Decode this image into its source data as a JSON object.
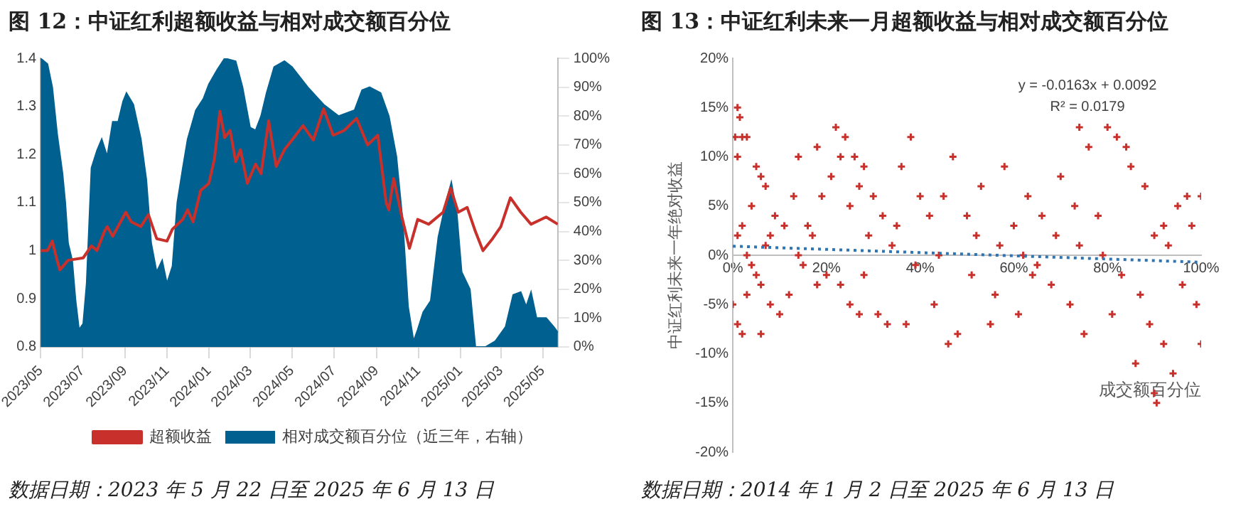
{
  "chart_data": [
    {
      "type": "line",
      "title": "图 12：中证红利超额收益与相对成交额百分位",
      "annotations": [
        "数据日期：2023 年 5 月 22 日至 2025 年 6 月 13 日"
      ],
      "legend": "bottom",
      "grid": false,
      "xlim": [
        "2023-05-22",
        "2025-06-13"
      ],
      "xticks": [
        {
          "value": "2023-05-22",
          "label": "2023/05"
        },
        {
          "value": "2023-07-22",
          "label": "2023/07"
        },
        {
          "value": "2023-09-22",
          "label": "2023/09"
        },
        {
          "value": "2023-11-22",
          "label": "2023/11"
        },
        {
          "value": "2024-01-22",
          "label": "2024/01"
        },
        {
          "value": "2024-03-22",
          "label": "2024/03"
        },
        {
          "value": "2024-05-22",
          "label": "2024/05"
        },
        {
          "value": "2024-07-22",
          "label": "2024/07"
        },
        {
          "value": "2024-09-22",
          "label": "2024/09"
        },
        {
          "value": "2024-11-22",
          "label": "2024/11"
        },
        {
          "value": "2025-01-22",
          "label": "2025/01"
        },
        {
          "value": "2025-03-22",
          "label": "2025/03"
        },
        {
          "value": "2025-05-22",
          "label": "2025/05"
        }
      ],
      "ylim": [
        0.8,
        1.4
      ],
      "yticks": [
        0.8,
        0.9,
        1,
        1.1,
        1.2,
        1.3,
        1.4
      ],
      "y2lim": [
        0,
        100
      ],
      "y2ticks": [
        {
          "value": 0,
          "label": "0%"
        },
        {
          "value": 10,
          "label": "10%"
        },
        {
          "value": 20,
          "label": "20%"
        },
        {
          "value": 30,
          "label": "30%"
        },
        {
          "value": 40,
          "label": "40%"
        },
        {
          "value": 50,
          "label": "50%"
        },
        {
          "value": 60,
          "label": "60%"
        },
        {
          "value": 70,
          "label": "70%"
        },
        {
          "value": 80,
          "label": "80%"
        },
        {
          "value": 90,
          "label": "90%"
        },
        {
          "value": 100,
          "label": "100%"
        }
      ],
      "series": [
        {
          "name": "相对成交额百分位（近三年，右轴）",
          "type": "area",
          "axis": "y2",
          "color": "#00608f",
          "x": [
            "2023-05-22",
            "2023-06-01",
            "2023-06-08",
            "2023-06-15",
            "2023-06-23",
            "2023-06-27",
            "2023-07-01",
            "2023-07-07",
            "2023-07-12",
            "2023-07-17",
            "2023-07-23",
            "2023-07-28",
            "2023-08-04",
            "2023-08-12",
            "2023-08-19",
            "2023-08-27",
            "2023-09-04",
            "2023-09-12",
            "2023-09-19",
            "2023-09-24",
            "2023-10-04",
            "2023-10-15",
            "2023-10-23",
            "2023-10-30",
            "2023-11-07",
            "2023-11-15",
            "2023-11-22",
            "2023-11-30",
            "2023-12-07",
            "2023-12-15",
            "2023-12-22",
            "2024-01-03",
            "2024-01-14",
            "2024-01-22",
            "2024-02-03",
            "2024-02-14",
            "2024-03-01",
            "2024-03-11",
            "2024-03-22",
            "2024-03-30",
            "2024-04-07",
            "2024-04-15",
            "2024-04-26",
            "2024-05-11",
            "2024-05-22",
            "2024-06-14",
            "2024-07-07",
            "2024-07-29",
            "2024-08-21",
            "2024-09-01",
            "2024-09-12",
            "2024-09-28",
            "2024-10-10",
            "2024-10-21",
            "2024-10-30",
            "2024-11-07",
            "2024-11-15",
            "2024-11-21",
            "2024-11-29",
            "2024-12-10",
            "2024-12-21",
            "2025-01-01",
            "2025-01-09",
            "2025-01-17",
            "2025-01-24",
            "2025-02-05",
            "2025-02-13",
            "2025-02-28",
            "2025-03-14",
            "2025-03-29",
            "2025-04-09",
            "2025-04-20",
            "2025-04-28",
            "2025-05-05",
            "2025-05-13",
            "2025-05-27",
            "2025-06-07",
            "2025-06-13"
          ],
          "values": [
            100,
            98,
            90,
            74,
            60,
            50,
            36,
            30,
            16,
            6,
            8,
            22,
            62,
            68,
            72,
            66,
            78,
            78,
            85,
            88,
            84,
            72,
            58,
            36,
            26,
            30,
            22,
            28,
            50,
            62,
            72,
            82,
            86,
            91,
            96,
            100,
            99,
            90,
            76,
            75,
            80,
            88,
            97,
            99,
            97,
            90,
            84,
            80,
            82,
            89,
            90,
            88,
            80,
            66,
            44,
            14,
            2,
            6,
            12,
            16,
            38,
            50,
            57,
            46,
            26,
            20,
            0,
            0,
            2,
            7,
            18,
            19,
            14,
            19,
            10,
            10,
            7,
            5
          ]
        },
        {
          "name": "超额收益",
          "type": "line",
          "color": "#c8302c",
          "x": [
            "2023-05-22",
            "2023-06-01",
            "2023-06-08",
            "2023-06-15",
            "2023-06-19",
            "2023-07-01",
            "2023-07-23",
            "2023-08-04",
            "2023-08-12",
            "2023-08-23",
            "2023-08-27",
            "2023-09-04",
            "2023-09-23",
            "2023-10-01",
            "2023-10-15",
            "2023-10-26",
            "2023-11-07",
            "2023-11-22",
            "2023-11-30",
            "2023-12-15",
            "2023-12-22",
            "2023-12-30",
            "2024-01-10",
            "2024-01-22",
            "2024-01-30",
            "2024-02-07",
            "2024-02-14",
            "2024-02-22",
            "2024-03-01",
            "2024-03-08",
            "2024-03-18",
            "2024-03-30",
            "2024-04-07",
            "2024-04-18",
            "2024-04-29",
            "2024-05-11",
            "2024-05-22",
            "2024-06-07",
            "2024-06-22",
            "2024-07-07",
            "2024-07-21",
            "2024-08-06",
            "2024-08-24",
            "2024-09-09",
            "2024-09-24",
            "2024-10-06",
            "2024-10-10",
            "2024-10-17",
            "2024-10-29",
            "2024-11-09",
            "2024-11-21",
            "2024-12-07",
            "2024-12-28",
            "2025-01-08",
            "2025-01-19",
            "2025-02-01",
            "2025-02-13",
            "2025-02-24",
            "2025-03-10",
            "2025-03-22",
            "2025-04-05",
            "2025-04-20",
            "2025-05-05",
            "2025-05-27",
            "2025-06-13"
          ],
          "values": [
            1,
            1,
            1.02,
            0.98,
            0.96,
            0.98,
            0.985,
            1.01,
            1,
            1.04,
            1.05,
            1.03,
            1.08,
            1.06,
            1.05,
            1.075,
            1.025,
            1.02,
            1.045,
            1.065,
            1.085,
            1.06,
            1.125,
            1.14,
            1.19,
            1.29,
            1.235,
            1.25,
            1.185,
            1.21,
            1.14,
            1.18,
            1.16,
            1.27,
            1.175,
            1.21,
            1.23,
            1.26,
            1.23,
            1.295,
            1.24,
            1.25,
            1.275,
            1.22,
            1.24,
            1.1,
            1.085,
            1.15,
            1.07,
            1.005,
            1.065,
            1.055,
            1.08,
            1.13,
            1.08,
            1.09,
            1.04,
            1,
            1.025,
            1.05,
            1.11,
            1.08,
            1.055,
            1.07,
            1.055
          ]
        }
      ]
    },
    {
      "type": "scatter",
      "title": "图 13：中证红利未来一月超额收益与相对成交额百分位",
      "xlabel": "成交额百分位",
      "ylabel": "中证红利未来一年绝对收益",
      "annotations": [
        "y = -0.0163x + 0.0092",
        "R² = 0.0179",
        "数据日期：2014 年 1 月 2 日至 2025 年 6 月 13 日"
      ],
      "legend": false,
      "grid": false,
      "marker": "cross",
      "xlim": [
        0,
        1
      ],
      "xticks": [
        {
          "value": 0,
          "label": "0%"
        },
        {
          "value": 0.2,
          "label": "20%"
        },
        {
          "value": 0.4,
          "label": "40%"
        },
        {
          "value": 0.6,
          "label": "60%"
        },
        {
          "value": 0.8,
          "label": "80%"
        },
        {
          "value": 1,
          "label": "100%"
        }
      ],
      "ylim": [
        -0.2,
        0.2
      ],
      "yticks": [
        {
          "value": -0.2,
          "label": "-20%"
        },
        {
          "value": -0.15,
          "label": "-15%"
        },
        {
          "value": -0.1,
          "label": "-10%"
        },
        {
          "value": -0.05,
          "label": "-5%"
        },
        {
          "value": 0,
          "label": "0%"
        },
        {
          "value": 0.05,
          "label": "5%"
        },
        {
          "value": 0.1,
          "label": "10%"
        },
        {
          "value": 0.15,
          "label": "15%"
        },
        {
          "value": 0.2,
          "label": "20%"
        }
      ],
      "series": [
        {
          "color": "#c8302c",
          "type": "scatter",
          "x": [
            0.01,
            0.015,
            0.005,
            0.02,
            0.03,
            0.01,
            0.05,
            0.06,
            0.07,
            0.01,
            0.02,
            0.06,
            0,
            0.03,
            0.02,
            0.04,
            0.05,
            0.08,
            0.1,
            0.09,
            0.07,
            0.03,
            0.01,
            0.06,
            0.12,
            0.11,
            0.13,
            0.14,
            0.16,
            0.18,
            0.19,
            0.2,
            0.15,
            0.17,
            0.22,
            0.24,
            0.23,
            0.26,
            0.28,
            0.27,
            0.25,
            0.21,
            0.23,
            0.25,
            0.27,
            0.29,
            0.3,
            0.32,
            0.31,
            0.33,
            0.35,
            0.36,
            0.37,
            0.38,
            0.4,
            0.42,
            0.43,
            0.45,
            0.46,
            0.47,
            0.48,
            0.5,
            0.52,
            0.53,
            0.55,
            0.56,
            0.58,
            0.6,
            0.61,
            0.63,
            0.64,
            0.66,
            0.68,
            0.7,
            0.72,
            0.73,
            0.75,
            0.76,
            0.74,
            0.78,
            0.8,
            0.81,
            0.82,
            0.84,
            0.85,
            0.86,
            0.87,
            0.88,
            0.89,
            0.9,
            0.905,
            0.92,
            0.93,
            0.95,
            0.96,
            0.97,
            0.98,
            0.99,
            1,
            1,
            0.94,
            0.92,
            0.9,
            0.83,
            0.79,
            0.74,
            0.69,
            0.65,
            0.62,
            0.57,
            0.51,
            0.44,
            0.39,
            0.34,
            0.28,
            0.18,
            0.14,
            0.08,
            0.04
          ],
          "values": [
            0.15,
            0.14,
            0.12,
            0.12,
            0.12,
            0.1,
            0.09,
            0.08,
            0.07,
            -0.07,
            -0.08,
            -0.08,
            -0.05,
            -0.04,
            0.03,
            0.05,
            -0.02,
            -0.05,
            -0.06,
            0.04,
            0.01,
            0,
            0.02,
            -0.03,
            -0.04,
            0.03,
            0.06,
            0.1,
            0.03,
            0.11,
            0.06,
            -0.02,
            -0.01,
            0.02,
            0.13,
            0.12,
            0.1,
            0.1,
            0.09,
            0.07,
            0.05,
            0.08,
            -0.03,
            -0.05,
            -0.06,
            0.02,
            0.06,
            0.04,
            -0.06,
            -0.07,
            0.03,
            0.09,
            -0.07,
            0.12,
            0.06,
            0.04,
            -0.05,
            0.06,
            -0.09,
            0.1,
            -0.08,
            0.04,
            0.02,
            0.07,
            -0.07,
            -0.04,
            0.09,
            0.03,
            -0.06,
            0.06,
            -0.02,
            0.04,
            -0.03,
            0.08,
            -0.05,
            0.05,
            -0.08,
            0.11,
            0.13,
            0.04,
            0.13,
            -0.06,
            0.12,
            0.11,
            0.09,
            -0.11,
            -0.04,
            0.07,
            -0.07,
            -0.14,
            -0.15,
            -0.09,
            0.01,
            0.05,
            -0.03,
            0.06,
            0.03,
            -0.05,
            0.06,
            -0.09,
            -0.12,
            0.03,
            0.02,
            -0.02,
            0,
            0.01,
            0.02,
            -0.01,
            0,
            0.01,
            -0.02,
            0,
            -0.01,
            0.01,
            -0.02,
            -0.03,
            0,
            0.02,
            -0.01
          ]
        },
        {
          "type": "line",
          "color": "#2e75b6",
          "marker": "none",
          "line_style": "dotted",
          "x": [
            0,
            1
          ],
          "values": [
            0.0092,
            -0.0071
          ]
        }
      ]
    }
  ]
}
